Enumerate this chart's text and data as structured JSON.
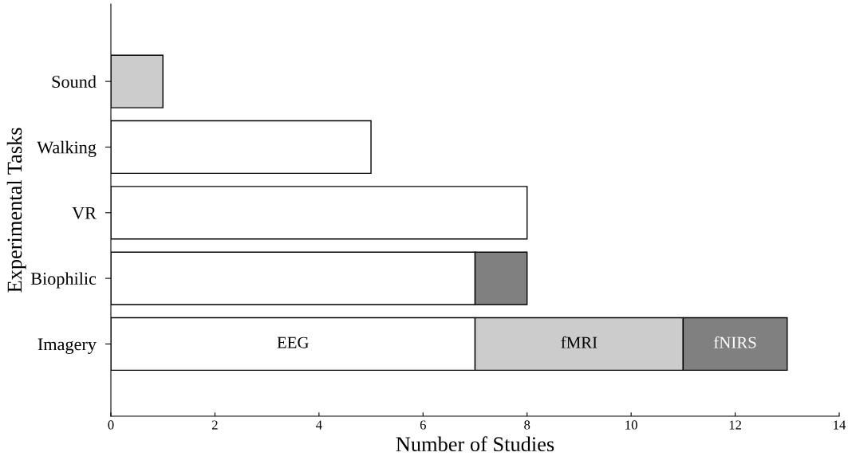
{
  "chart_data": {
    "type": "bar",
    "orientation": "horizontal",
    "stacked": true,
    "xlabel": "Number of Studies",
    "ylabel": "Experimental Tasks",
    "categories": [
      "Sound",
      "Walking",
      "VR",
      "Biophilic",
      "Imagery"
    ],
    "series": [
      {
        "name": "EEG",
        "color": "#ffffff",
        "values": [
          null,
          5,
          8,
          7,
          7
        ]
      },
      {
        "name": "fMRI",
        "color": "#cccccc",
        "values": [
          1,
          null,
          null,
          null,
          4
        ]
      },
      {
        "name": "fNIRS",
        "color": "#808080",
        "values": [
          null,
          null,
          null,
          1,
          2
        ]
      }
    ],
    "xlim": [
      0,
      14
    ],
    "xticks": [
      0,
      2,
      4,
      6,
      8,
      10,
      12,
      14
    ],
    "grid": false,
    "legend": false
  }
}
